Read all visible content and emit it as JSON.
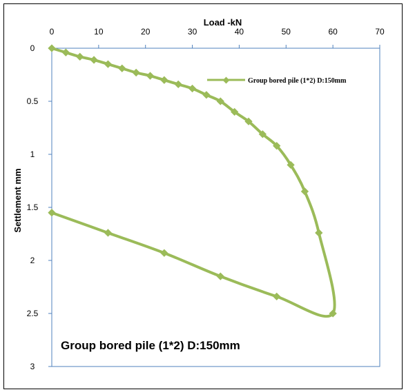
{
  "chart_data": {
    "type": "line",
    "title": "",
    "xlabel": "Load -kN",
    "ylabel": "Settlement mm",
    "xlim": [
      0,
      70
    ],
    "ylim": [
      0,
      3
    ],
    "y_inverted": true,
    "x_axis_position": "top",
    "x_ticks": [
      "0",
      "10",
      "20",
      "30",
      "40",
      "50",
      "60",
      "70"
    ],
    "y_ticks": [
      "0",
      "0.5",
      "1",
      "1.5",
      "2",
      "2.5",
      "3"
    ],
    "grid": false,
    "legend_position": "top-right",
    "series": [
      {
        "name": "Group bored pile (1*2) D:150mm",
        "color": "#9bbb59",
        "x": [
          0,
          3,
          6,
          9,
          12,
          15,
          18,
          21,
          24,
          27,
          30,
          33,
          36,
          39,
          42,
          45,
          48,
          51,
          54,
          57,
          60,
          48,
          36,
          24,
          12,
          0
        ],
        "y": [
          0,
          0.04,
          0.08,
          0.11,
          0.15,
          0.19,
          0.23,
          0.26,
          0.3,
          0.34,
          0.38,
          0.44,
          0.5,
          0.6,
          0.69,
          0.81,
          0.92,
          1.1,
          1.35,
          1.74,
          2.5,
          2.34,
          2.15,
          1.93,
          1.74,
          1.55
        ]
      }
    ],
    "annotations": [
      "Group bored pile (1*2) D:150mm"
    ]
  }
}
